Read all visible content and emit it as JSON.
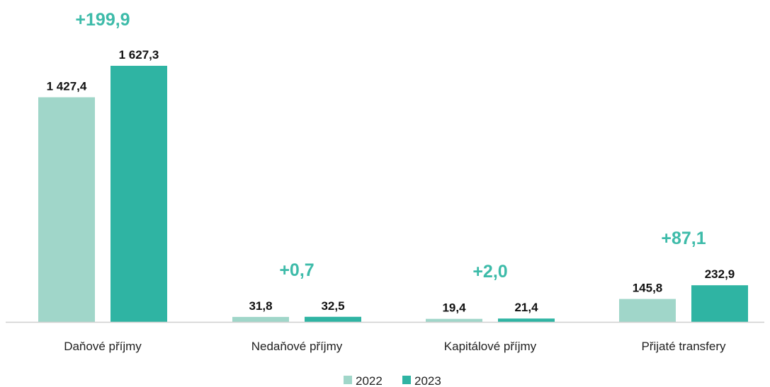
{
  "chart_data": {
    "type": "bar",
    "title": "",
    "xlabel": "",
    "ylabel": "",
    "categories": [
      "Daňové příjmy",
      "Nedaňové příjmy",
      "Kapitálové příjmy",
      "Přijaté transfery"
    ],
    "series": [
      {
        "name": "2022",
        "values": [
          1427.4,
          31.8,
          19.4,
          145.8
        ],
        "labels": [
          "1 427,4",
          "31,8",
          "19,4",
          "145,8"
        ],
        "color": "#a0d6c9"
      },
      {
        "name": "2023",
        "values": [
          1627.3,
          32.5,
          21.4,
          232.9
        ],
        "labels": [
          "1 627,3",
          "32,5",
          "21,4",
          "232,9"
        ],
        "color": "#2fb4a3"
      }
    ],
    "differences": [
      "+199,9",
      "+0,7",
      "+2,0",
      "+87,1"
    ],
    "difference_color": "#3dbba9",
    "ylim": [
      0,
      1627.3
    ],
    "grid": false,
    "legend": "bottom-center"
  }
}
